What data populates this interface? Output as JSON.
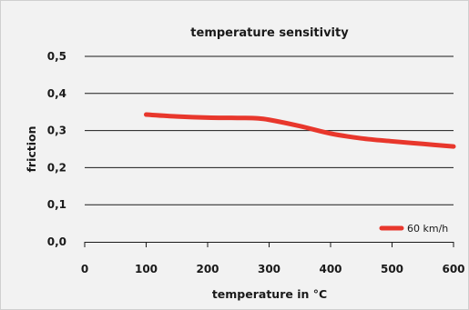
{
  "chart_data": {
    "type": "line",
    "title": "temperature sensitivity",
    "xlabel": "temperature in °C",
    "ylabel": "friction",
    "xlim": [
      0,
      600
    ],
    "ylim": [
      0.0,
      0.5
    ],
    "x_ticks": [
      0,
      100,
      200,
      300,
      400,
      500,
      600
    ],
    "x_tick_labels": [
      "0",
      "100",
      "200",
      "300",
      "400",
      "500",
      "600"
    ],
    "y_ticks": [
      0.0,
      0.1,
      0.2,
      0.3,
      0.4,
      0.5
    ],
    "y_tick_labels": [
      "0,0",
      "0,1",
      "0,2",
      "0,3",
      "0,4",
      "0,5"
    ],
    "grid": "horizontal",
    "legend_position": "bottom-right",
    "series": [
      {
        "name": "60 km/h",
        "color": "#e8372c",
        "x": [
          100,
          150,
          200,
          250,
          280,
          300,
          350,
          400,
          450,
          500,
          550,
          600
        ],
        "y": [
          0.343,
          0.338,
          0.335,
          0.334,
          0.333,
          0.329,
          0.312,
          0.292,
          0.279,
          0.271,
          0.264,
          0.257
        ]
      }
    ]
  }
}
